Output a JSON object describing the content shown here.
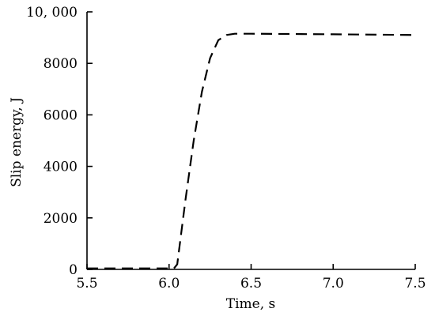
{
  "chart_data": {
    "type": "line",
    "title": "",
    "xlabel": "Time, s",
    "ylabel": "Slip energy, J",
    "xlim": [
      5.5,
      7.5
    ],
    "ylim": [
      0,
      10000
    ],
    "x_ticks": [
      5.5,
      6.0,
      6.5,
      7.0,
      7.5
    ],
    "x_tick_labels": [
      "5.5",
      "6.0",
      "6.5",
      "7.0",
      "7.5"
    ],
    "y_ticks": [
      0,
      2000,
      4000,
      6000,
      8000,
      10000
    ],
    "y_tick_labels": [
      "0",
      "2000",
      "4000",
      "6000",
      "8000",
      "10, 000"
    ],
    "grid": false,
    "legend": "none",
    "series": [
      {
        "line_style": "dashed",
        "color": "#000000",
        "x": [
          5.5,
          5.8,
          6.03,
          6.05,
          6.1,
          6.15,
          6.2,
          6.25,
          6.3,
          6.35,
          6.4,
          6.5,
          7.0,
          7.5
        ],
        "y": [
          40,
          40,
          40,
          200,
          2700,
          5000,
          6900,
          8200,
          8900,
          9100,
          9150,
          9150,
          9130,
          9100
        ]
      }
    ]
  }
}
